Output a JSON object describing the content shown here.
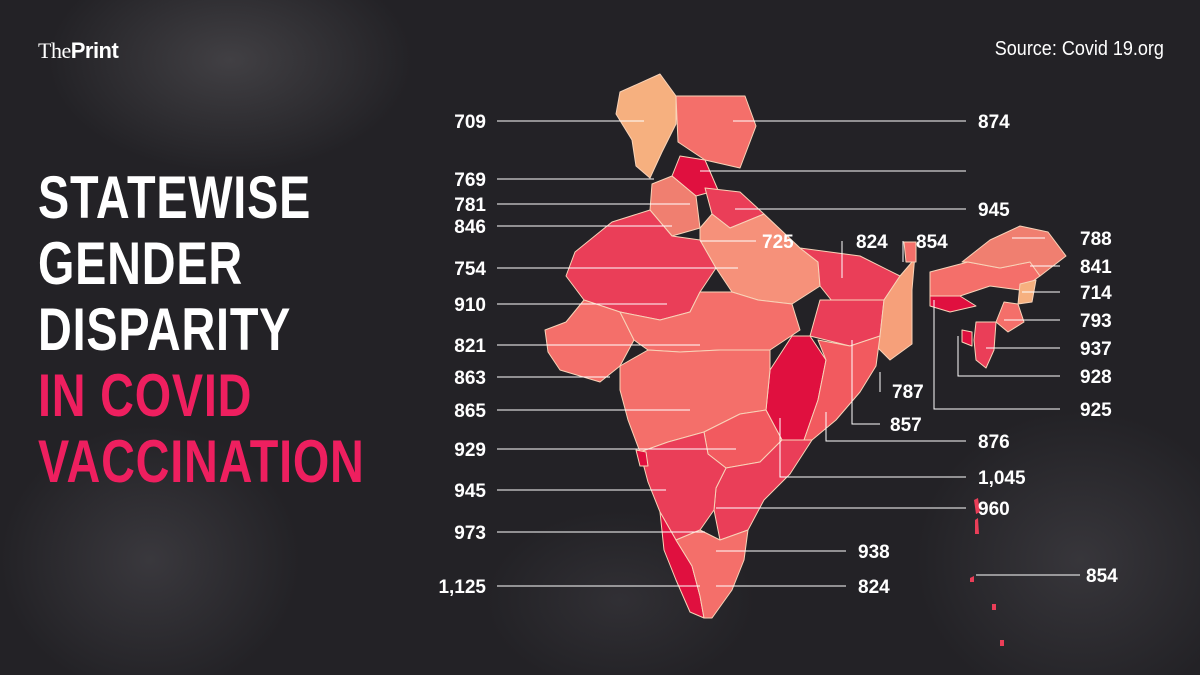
{
  "brand": {
    "logo_prefix": "The",
    "logo_bold": "Print"
  },
  "source": "Source: Covid 19.org",
  "headline": {
    "lines_white": [
      "STATEWISE",
      "GENDER",
      "DISPARITY"
    ],
    "lines_pink": [
      "IN COVID",
      "VACCINATION"
    ]
  },
  "colors": {
    "background": "#232226",
    "headline_accent": "#ee1f5f",
    "map_light": "#f6b07f",
    "map_mid": "#f46f6a",
    "map_dark": "#ea3e58",
    "map_darkest": "#e0103f"
  },
  "labels": {
    "left": [
      "709",
      "769",
      "781",
      "846",
      "754",
      "910",
      "821",
      "863",
      "865",
      "929",
      "945",
      "973",
      "1,125"
    ],
    "right": [
      "874",
      "945",
      "725",
      "824",
      "854",
      "788",
      "841",
      "714",
      "793",
      "937",
      "928",
      "925",
      "787",
      "857",
      "876",
      "1,045",
      "960",
      "938",
      "824",
      "854"
    ]
  }
}
